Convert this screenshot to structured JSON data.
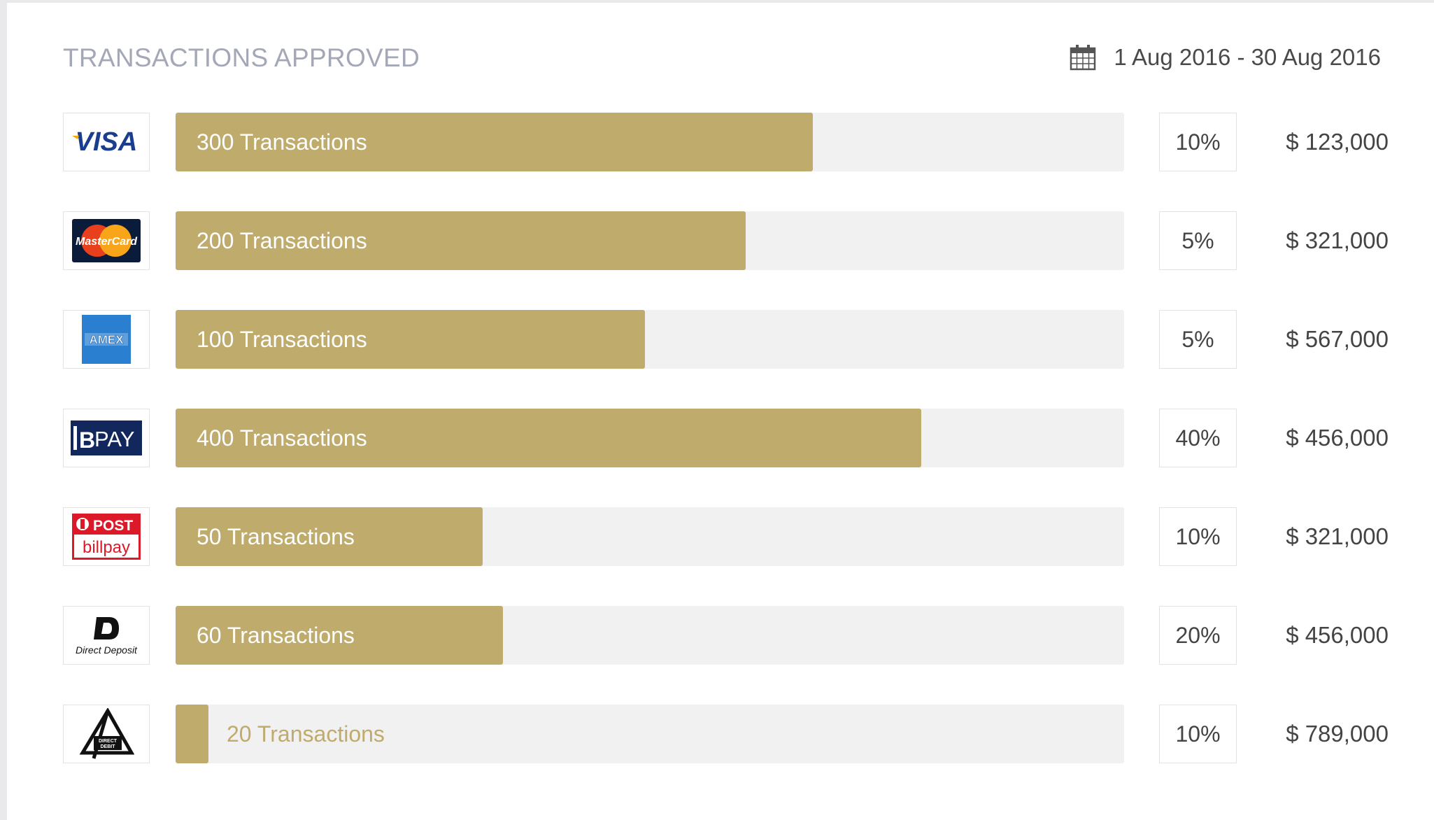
{
  "header": {
    "title": "TRANSACTIONS APPROVED",
    "date_range": "1 Aug 2016 - 30 Aug 2016",
    "calendar_icon": "calendar-icon"
  },
  "colors": {
    "bar_fill": "#bfab6b",
    "bar_track": "#f1f1f1",
    "title": "#a4a8b6"
  },
  "logo_text": {
    "visa": "VISA",
    "mastercard": "MasterCard",
    "amex": "AMEX",
    "bpay": "PAY",
    "post": "POST",
    "billpay": "billpay",
    "direct_deposit": "Direct Deposit",
    "direct_debit_1": "DIRECT",
    "direct_debit_2": "DEBIT"
  },
  "rows": [
    {
      "method": "visa-logo",
      "label": "300 Transactions",
      "fill": 0.672,
      "percent": "10%",
      "amount": "$ 123,000"
    },
    {
      "method": "mastercard-logo",
      "label": "200 Transactions",
      "fill": 0.601,
      "percent": "5%",
      "amount": "$ 321,000"
    },
    {
      "method": "amex-logo",
      "label": "100 Transactions",
      "fill": 0.495,
      "percent": "5%",
      "amount": "$ 567,000"
    },
    {
      "method": "bpay-logo",
      "label": "400 Transactions",
      "fill": 0.786,
      "percent": "40%",
      "amount": "$ 456,000"
    },
    {
      "method": "post-billpay-logo",
      "label": "50 Transactions",
      "fill": 0.324,
      "percent": "10%",
      "amount": "$ 321,000"
    },
    {
      "method": "direct-deposit-logo",
      "label": "60 Transactions",
      "fill": 0.345,
      "percent": "20%",
      "amount": "$ 456,000"
    },
    {
      "method": "direct-debit-logo",
      "label": "20 Transactions",
      "fill": 0.035,
      "percent": "10%",
      "amount": "$ 789,000"
    }
  ]
}
